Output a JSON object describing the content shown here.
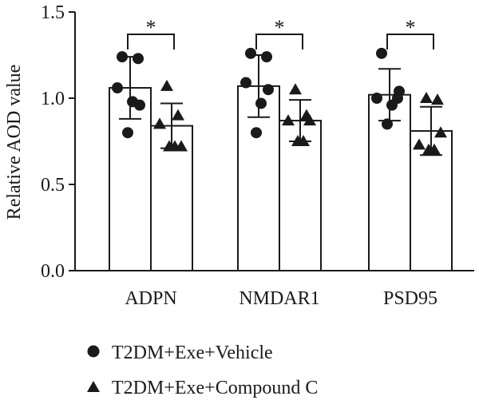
{
  "chart_data": {
    "type": "bar",
    "categories": [
      "ADPN",
      "NMDAR1",
      "PSD95"
    ],
    "ylabel": "Relative AOD value",
    "xlabel": "",
    "ylim": [
      0,
      1.5
    ],
    "yticks": [
      "0.0",
      "0.5",
      "1.0",
      "1.5"
    ],
    "grid": false,
    "legend_position": "bottom",
    "series": [
      {
        "name": "T2DM+Exe+Vehicle",
        "marker": "circle",
        "values": [
          1.06,
          1.07,
          1.02
        ],
        "sd": [
          0.18,
          0.18,
          0.15
        ],
        "points": [
          [
            1.24,
            1.23,
            1.06,
            0.98,
            0.8,
            0.96
          ],
          [
            1.26,
            1.24,
            1.09,
            0.97,
            0.8,
            1.05
          ],
          [
            1.26,
            1.0,
            1.0,
            0.96,
            0.85,
            1.04
          ]
        ]
      },
      {
        "name": "T2DM+Exe+Compound C",
        "marker": "triangle",
        "values": [
          0.84,
          0.87,
          0.81
        ],
        "sd": [
          0.13,
          0.12,
          0.14
        ],
        "points": [
          [
            1.07,
            0.9,
            0.85,
            0.72,
            0.72,
            0.72
          ],
          [
            1.05,
            0.9,
            0.87,
            0.75,
            0.75,
            0.87
          ],
          [
            1.0,
            0.99,
            0.73,
            0.7,
            0.7,
            0.8
          ]
        ]
      }
    ],
    "annotations": [
      {
        "category": "ADPN",
        "label": "*"
      },
      {
        "category": "NMDAR1",
        "label": "*"
      },
      {
        "category": "PSD95",
        "label": "*"
      }
    ]
  },
  "colors": {
    "ink": "#1a1a1a",
    "bar_fill": "#ffffff"
  }
}
